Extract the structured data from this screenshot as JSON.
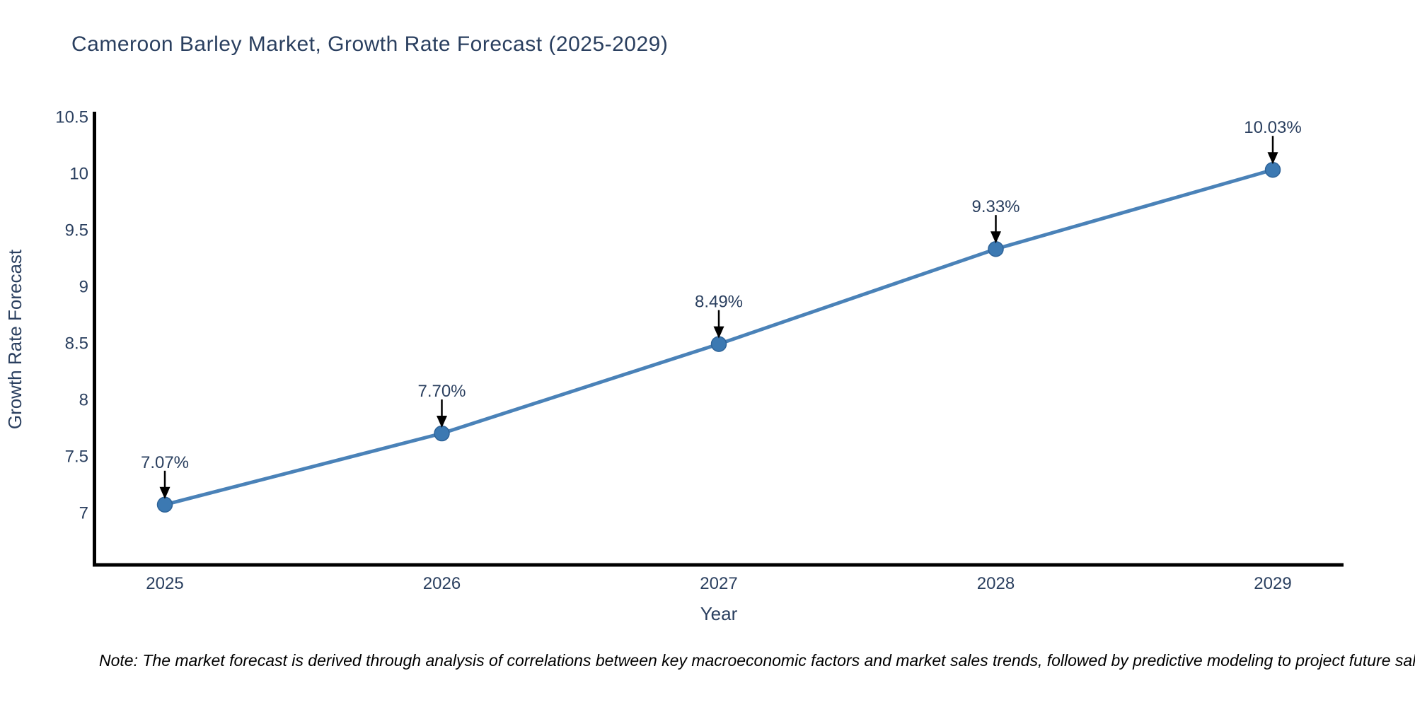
{
  "title": "Cameroon Barley Market, Growth Rate Forecast (2025-2029)",
  "note": "Note: The market forecast is derived through analysis of correlations between key macroeconomic factors and market sales trends, followed by predictive modeling to project future sal",
  "chart_data": {
    "type": "line",
    "title": "Cameroon Barley Market, Growth Rate Forecast (2025-2029)",
    "xlabel": "Year",
    "ylabel": "Growth Rate Forecast",
    "x": [
      2025,
      2026,
      2027,
      2028,
      2029
    ],
    "x_tick_labels": [
      "2025",
      "2026",
      "2027",
      "2028",
      "2029"
    ],
    "values": [
      7.07,
      7.7,
      8.49,
      9.33,
      10.03
    ],
    "point_labels": [
      "7.07%",
      "7.70%",
      "8.49%",
      "9.33%",
      "10.03%"
    ],
    "y_ticks": [
      7,
      7.5,
      8,
      8.5,
      9,
      9.5,
      10,
      10.5
    ],
    "y_tick_labels": [
      "7",
      "7.5",
      "8",
      "8.5",
      "9",
      "9.5",
      "10",
      "10.5"
    ],
    "ylim": [
      6.53,
      10.53
    ],
    "grid": false,
    "legend": "none",
    "markers": true,
    "annotations_with_arrows": true,
    "colors": {
      "line": "#4a82b8",
      "marker": "#3c79b2",
      "marker_edge": "#2e6398",
      "axis": "#000000",
      "text": "#2a3f5f",
      "annotation_arrow": "#000000",
      "note_text": "#000000",
      "background": "#ffffff"
    }
  }
}
